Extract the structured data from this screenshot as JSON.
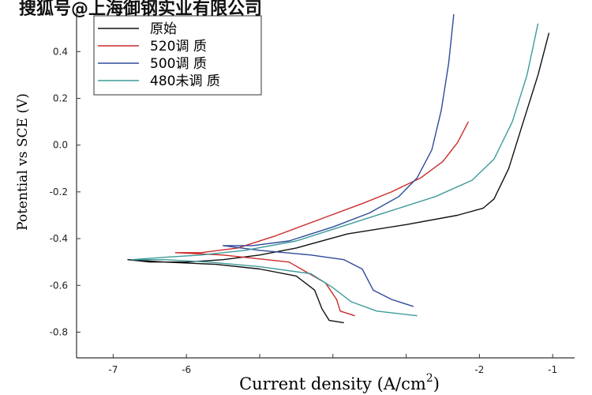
{
  "watermark": "搜狐号@上海御钢实业有限公司",
  "chart_data": {
    "type": "line",
    "xlabel": "Current density (A/cm",
    "xlabel_sup": "2",
    "xlabel_close": ")",
    "ylabel": "Potential vs SCE (V)",
    "xlim": [
      -7.5,
      -0.7
    ],
    "ylim": [
      -0.91,
      0.57
    ],
    "xticks": [
      -7,
      -6,
      -5,
      -4,
      -3,
      -2,
      -1
    ],
    "xtick_labels": [
      "-7",
      "-6",
      "",
      "",
      "",
      "-2",
      "-1"
    ],
    "yticks": [
      -0.8,
      -0.6,
      -0.4,
      -0.2,
      0.0,
      0.2,
      0.4
    ],
    "ytick_labels": [
      "-0.8",
      "-0.6",
      "-0.4",
      "-0.2",
      "0.0",
      "0.2",
      "0.4"
    ],
    "legend_position": "top-left",
    "series": [
      {
        "name": "原始",
        "color": "#111111",
        "points": [
          [
            -1.05,
            0.48
          ],
          [
            -1.2,
            0.3
          ],
          [
            -1.4,
            0.1
          ],
          [
            -1.6,
            -0.1
          ],
          [
            -1.8,
            -0.23
          ],
          [
            -1.95,
            -0.27
          ],
          [
            -2.3,
            -0.3
          ],
          [
            -3.0,
            -0.34
          ],
          [
            -3.8,
            -0.38
          ],
          [
            -4.5,
            -0.44
          ],
          [
            -5.0,
            -0.47
          ],
          [
            -5.5,
            -0.49
          ],
          [
            -6.0,
            -0.5
          ],
          [
            -6.5,
            -0.5
          ],
          [
            -6.8,
            -0.49
          ],
          [
            -6.3,
            -0.5
          ],
          [
            -5.6,
            -0.51
          ],
          [
            -5.0,
            -0.53
          ],
          [
            -4.5,
            -0.56
          ],
          [
            -4.25,
            -0.62
          ],
          [
            -4.15,
            -0.7
          ],
          [
            -4.05,
            -0.75
          ],
          [
            -3.85,
            -0.76
          ]
        ]
      },
      {
        "name": "520调 质",
        "color": "#cc2a2a",
        "points": [
          [
            -2.15,
            0.1
          ],
          [
            -2.3,
            0.01
          ],
          [
            -2.5,
            -0.07
          ],
          [
            -2.8,
            -0.14
          ],
          [
            -3.2,
            -0.2
          ],
          [
            -3.6,
            -0.25
          ],
          [
            -4.2,
            -0.32
          ],
          [
            -4.8,
            -0.39
          ],
          [
            -5.3,
            -0.44
          ],
          [
            -5.8,
            -0.46
          ],
          [
            -6.15,
            -0.46
          ],
          [
            -5.5,
            -0.47
          ],
          [
            -4.6,
            -0.5
          ],
          [
            -4.1,
            -0.59
          ],
          [
            -3.95,
            -0.66
          ],
          [
            -3.9,
            -0.71
          ],
          [
            -3.7,
            -0.73
          ]
        ]
      },
      {
        "name": "500调 质",
        "color": "#2e4b9a",
        "points": [
          [
            -2.35,
            0.56
          ],
          [
            -2.42,
            0.35
          ],
          [
            -2.52,
            0.15
          ],
          [
            -2.65,
            -0.02
          ],
          [
            -2.85,
            -0.14
          ],
          [
            -3.1,
            -0.22
          ],
          [
            -3.5,
            -0.29
          ],
          [
            -4.0,
            -0.35
          ],
          [
            -4.6,
            -0.41
          ],
          [
            -5.1,
            -0.43
          ],
          [
            -5.5,
            -0.43
          ],
          [
            -5.0,
            -0.45
          ],
          [
            -4.3,
            -0.47
          ],
          [
            -3.85,
            -0.49
          ],
          [
            -3.6,
            -0.53
          ],
          [
            -3.45,
            -0.62
          ],
          [
            -3.2,
            -0.66
          ],
          [
            -2.9,
            -0.69
          ]
        ]
      },
      {
        "name": "480未调 质",
        "color": "#3e9a9a",
        "points": [
          [
            -1.2,
            0.52
          ],
          [
            -1.35,
            0.3
          ],
          [
            -1.55,
            0.1
          ],
          [
            -1.8,
            -0.06
          ],
          [
            -2.1,
            -0.15
          ],
          [
            -2.6,
            -0.22
          ],
          [
            -3.2,
            -0.28
          ],
          [
            -3.8,
            -0.34
          ],
          [
            -4.5,
            -0.41
          ],
          [
            -5.2,
            -0.45
          ],
          [
            -5.8,
            -0.47
          ],
          [
            -6.3,
            -0.48
          ],
          [
            -6.75,
            -0.49
          ],
          [
            -6.3,
            -0.49
          ],
          [
            -5.7,
            -0.5
          ],
          [
            -5.0,
            -0.52
          ],
          [
            -4.3,
            -0.55
          ],
          [
            -4.0,
            -0.61
          ],
          [
            -3.75,
            -0.67
          ],
          [
            -3.4,
            -0.71
          ],
          [
            -2.85,
            -0.73
          ]
        ]
      }
    ]
  }
}
